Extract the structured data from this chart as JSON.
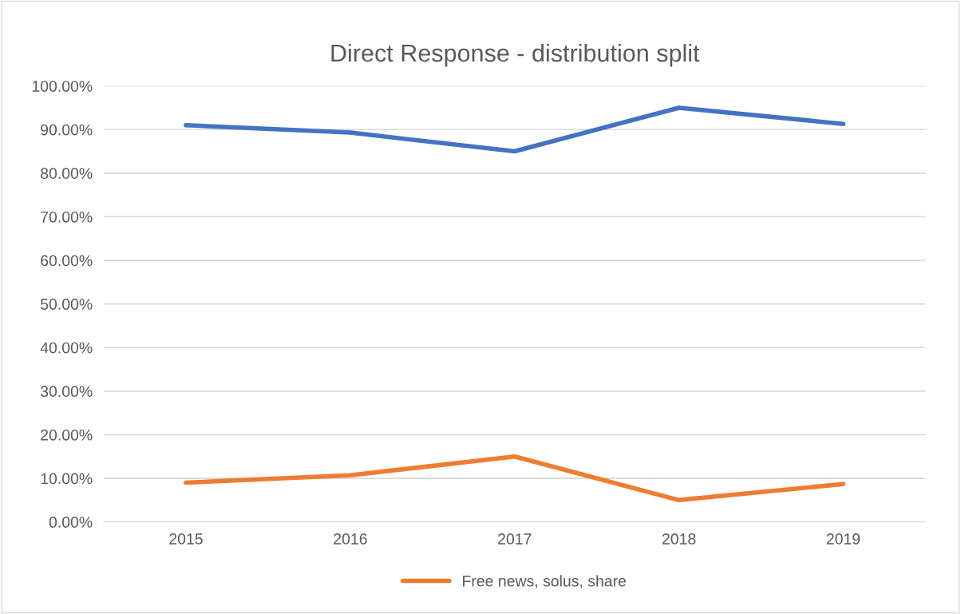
{
  "chart_data": {
    "type": "line",
    "title": "Direct Response - distribution split",
    "categories": [
      "2015",
      "2016",
      "2017",
      "2018",
      "2019"
    ],
    "series": [
      {
        "color": "#4472c4",
        "values": [
          91,
          89.3,
          85,
          95,
          91.3
        ]
      },
      {
        "name": "Free news, solus, share",
        "color": "#ed7d31",
        "values": [
          9,
          10.7,
          15,
          5,
          8.7
        ]
      }
    ],
    "ylim": [
      0,
      100
    ],
    "yticks": [
      {
        "value": 0,
        "label": "0.00%"
      },
      {
        "value": 10,
        "label": "10.00%"
      },
      {
        "value": 20,
        "label": "20.00%"
      },
      {
        "value": 30,
        "label": "30.00%"
      },
      {
        "value": 40,
        "label": "40.00%"
      },
      {
        "value": 50,
        "label": "50.00%"
      },
      {
        "value": 60,
        "label": "60.00%"
      },
      {
        "value": 70,
        "label": "70.00%"
      },
      {
        "value": 80,
        "label": "80.00%"
      },
      {
        "value": 90,
        "label": "90.00%"
      },
      {
        "value": 100,
        "label": "100.00%"
      }
    ],
    "grid": "y",
    "legend": "bottom",
    "marker": "none",
    "line_style": "solid"
  }
}
